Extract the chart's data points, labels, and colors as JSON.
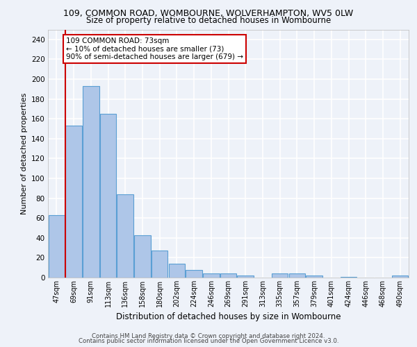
{
  "title_line1": "109, COMMON ROAD, WOMBOURNE, WOLVERHAMPTON, WV5 0LW",
  "title_line2": "Size of property relative to detached houses in Wombourne",
  "xlabel": "Distribution of detached houses by size in Wombourne",
  "ylabel": "Number of detached properties",
  "categories": [
    "47sqm",
    "69sqm",
    "91sqm",
    "113sqm",
    "136sqm",
    "158sqm",
    "180sqm",
    "202sqm",
    "224sqm",
    "246sqm",
    "269sqm",
    "291sqm",
    "313sqm",
    "335sqm",
    "357sqm",
    "379sqm",
    "401sqm",
    "424sqm",
    "446sqm",
    "468sqm",
    "490sqm"
  ],
  "values": [
    63,
    153,
    193,
    165,
    84,
    43,
    27,
    14,
    8,
    4,
    4,
    2,
    0,
    4,
    4,
    2,
    0,
    1,
    0,
    0,
    2
  ],
  "bar_color": "#aec6e8",
  "bar_edge_color": "#5a9fd4",
  "property_line_x": 0.5,
  "property_line_color": "#cc0000",
  "annotation_text": "109 COMMON ROAD: 73sqm\n← 10% of detached houses are smaller (73)\n90% of semi-detached houses are larger (679) →",
  "annotation_box_color": "#ffffff",
  "annotation_box_edge": "#cc0000",
  "ylim": [
    0,
    250
  ],
  "yticks": [
    0,
    20,
    40,
    60,
    80,
    100,
    120,
    140,
    160,
    180,
    200,
    220,
    240
  ],
  "background_color": "#eef2f9",
  "axes_background": "#eef2f9",
  "grid_color": "#ffffff",
  "footer_line1": "Contains HM Land Registry data © Crown copyright and database right 2024.",
  "footer_line2": "Contains public sector information licensed under the Open Government Licence v3.0."
}
